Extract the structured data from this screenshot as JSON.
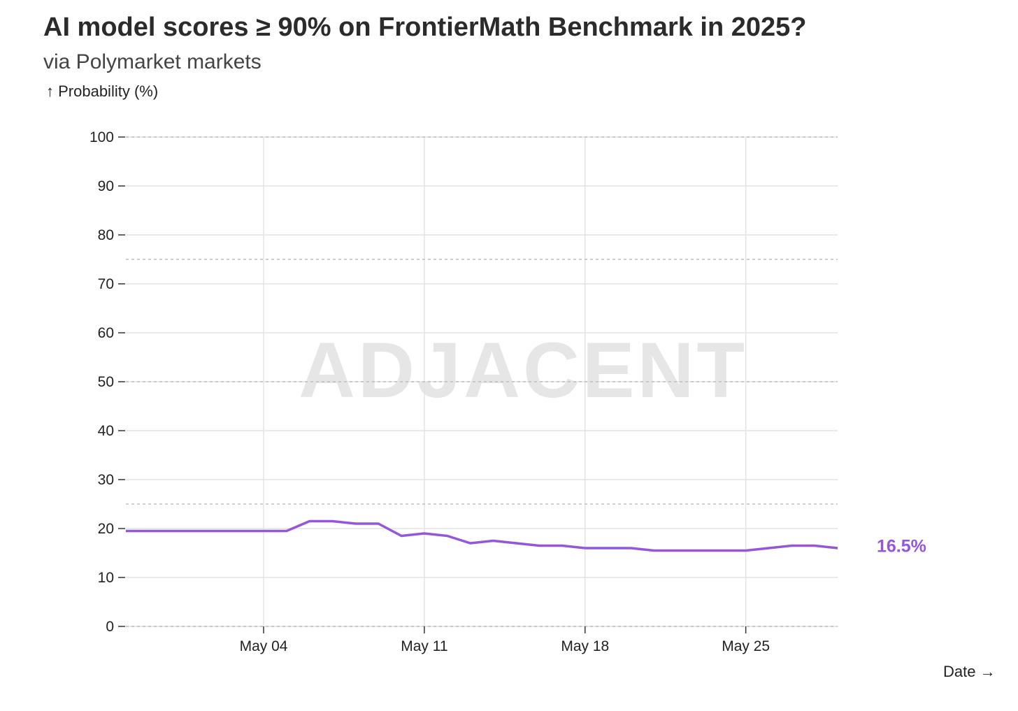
{
  "chart_data": {
    "type": "line",
    "title": "AI model scores ≥ 90% on FrontierMath Benchmark in 2025?",
    "subtitle": "via Polymarket markets",
    "ylabel": "↑ Probability (%)",
    "xlabel": "Date →",
    "watermark": "ADJACENT",
    "ylim": [
      0,
      100
    ],
    "yticks": [
      0,
      10,
      20,
      30,
      40,
      50,
      60,
      70,
      80,
      90,
      100
    ],
    "xlim": [
      "2025-04-28",
      "2025-05-29"
    ],
    "xticks": [
      {
        "date": "2025-05-04",
        "label": "May 04"
      },
      {
        "date": "2025-05-11",
        "label": "May 11"
      },
      {
        "date": "2025-05-18",
        "label": "May 18"
      },
      {
        "date": "2025-05-25",
        "label": "May 25"
      }
    ],
    "reference_lines": [
      25,
      50,
      75,
      100
    ],
    "grid": true,
    "line_color": "#9656dc",
    "end_label": "16.5%",
    "series": [
      {
        "points": [
          {
            "x": "2025-04-28",
            "y": 19.5
          },
          {
            "x": "2025-04-29",
            "y": 19.5
          },
          {
            "x": "2025-04-30",
            "y": 19.5
          },
          {
            "x": "2025-05-01",
            "y": 19.5
          },
          {
            "x": "2025-05-02",
            "y": 19.5
          },
          {
            "x": "2025-05-03",
            "y": 19.5
          },
          {
            "x": "2025-05-04",
            "y": 19.5
          },
          {
            "x": "2025-05-05",
            "y": 19.5
          },
          {
            "x": "2025-05-06",
            "y": 21.5
          },
          {
            "x": "2025-05-07",
            "y": 21.5
          },
          {
            "x": "2025-05-08",
            "y": 21.0
          },
          {
            "x": "2025-05-09",
            "y": 21.0
          },
          {
            "x": "2025-05-10",
            "y": 18.5
          },
          {
            "x": "2025-05-11",
            "y": 19.0
          },
          {
            "x": "2025-05-12",
            "y": 18.5
          },
          {
            "x": "2025-05-13",
            "y": 17.0
          },
          {
            "x": "2025-05-14",
            "y": 17.5
          },
          {
            "x": "2025-05-15",
            "y": 17.0
          },
          {
            "x": "2025-05-16",
            "y": 16.5
          },
          {
            "x": "2025-05-17",
            "y": 16.5
          },
          {
            "x": "2025-05-18",
            "y": 16.0
          },
          {
            "x": "2025-05-19",
            "y": 16.0
          },
          {
            "x": "2025-05-20",
            "y": 16.0
          },
          {
            "x": "2025-05-21",
            "y": 15.5
          },
          {
            "x": "2025-05-22",
            "y": 15.5
          },
          {
            "x": "2025-05-23",
            "y": 15.5
          },
          {
            "x": "2025-05-24",
            "y": 15.5
          },
          {
            "x": "2025-05-25",
            "y": 15.5
          },
          {
            "x": "2025-05-26",
            "y": 16.0
          },
          {
            "x": "2025-05-27",
            "y": 16.5
          },
          {
            "x": "2025-05-28",
            "y": 16.5
          },
          {
            "x": "2025-05-29",
            "y": 16.0
          },
          {
            "x": "2025-05-30",
            "y": 16.5
          }
        ]
      }
    ]
  }
}
